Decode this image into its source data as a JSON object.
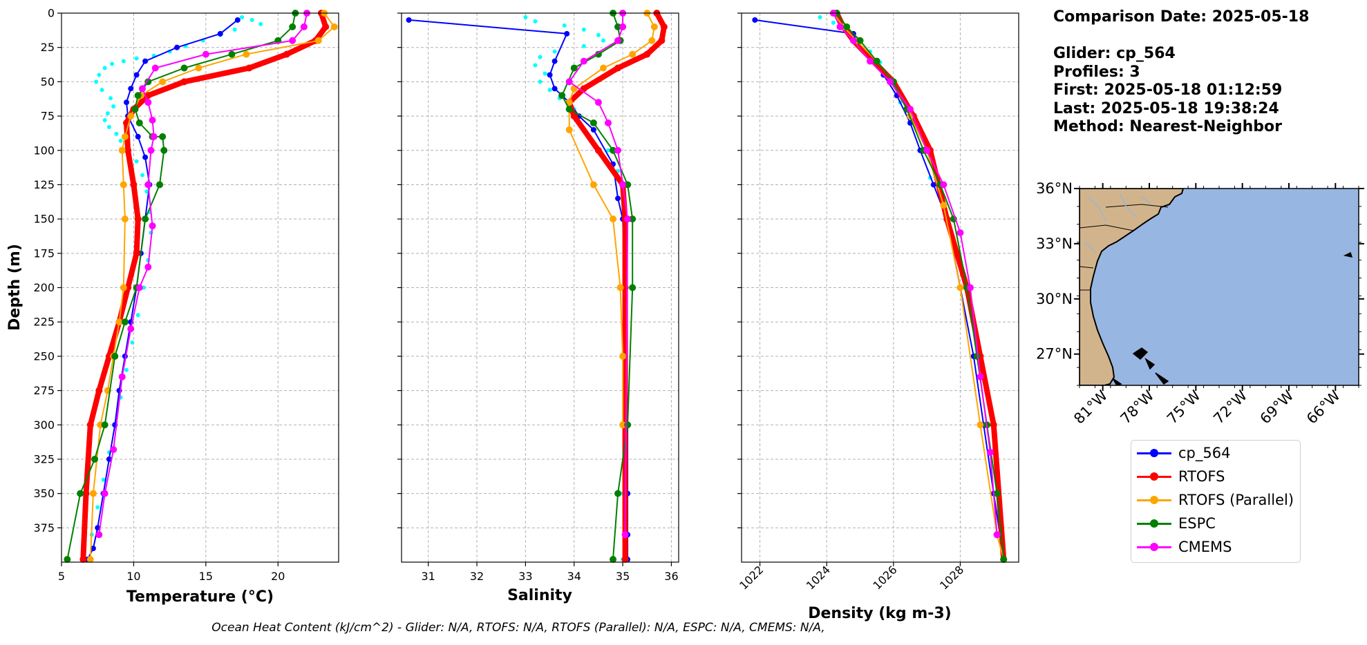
{
  "info": {
    "comparison_date": "Comparison Date: 2025-05-18",
    "glider": "Glider: cp_564",
    "profiles": "Profiles: 3",
    "first": "First: 2025-05-18 01:12:59",
    "last": "Last: 2025-05-18 19:38:24",
    "method": "Method: Nearest-Neighbor"
  },
  "footer": "Ocean Heat Content (kJ/cm^2) - Glider: N/A,  RTOFS: N/A,  RTOFS (Parallel): N/A,  ESPC: N/A,  CMEMS: N/A,",
  "legend": [
    {
      "label": "cp_564",
      "color": "#0000ff"
    },
    {
      "label": "RTOFS",
      "color": "#ff0000"
    },
    {
      "label": "RTOFS (Parallel)",
      "color": "#ffa500"
    },
    {
      "label": "ESPC",
      "color": "#008000"
    },
    {
      "label": "CMEMS",
      "color": "#ff00ff"
    }
  ],
  "colors": {
    "glider_points": "#00ffff",
    "land": "#d2b48c",
    "ocean": "#97b6e1",
    "grid": "#b0b0b0"
  },
  "chart_data": [
    {
      "type": "line",
      "xlabel": "Temperature (°C)",
      "ylabel": "Depth (m)",
      "xlim": [
        5,
        24.2
      ],
      "ylim": [
        400,
        0
      ],
      "xticks": [
        5,
        10,
        15,
        20
      ],
      "yticks": [
        0,
        25,
        50,
        75,
        100,
        125,
        150,
        175,
        200,
        225,
        250,
        275,
        300,
        325,
        350,
        375
      ],
      "grid": true,
      "scatter": {
        "name": "",
        "color": "#00ffff",
        "x": [
          17.5,
          18.2,
          18.8,
          17.0,
          16.0,
          14.8,
          13.6,
          12.5,
          11.4,
          10.2,
          9.3,
          8.5,
          8.0,
          7.6,
          7.4,
          7.8,
          8.4,
          8.6,
          8.2,
          8.0,
          8.3,
          8.8,
          9.1,
          9.6,
          10.2,
          10.6,
          10.9,
          11.1,
          11.2,
          11.0,
          10.7,
          10.3,
          9.9,
          9.5,
          9.1,
          8.7,
          8.3,
          7.9,
          7.5,
          7.1,
          6.8
        ],
        "y": [
          3,
          5,
          8,
          12,
          16,
          20,
          24,
          28,
          31,
          33,
          35,
          37,
          40,
          45,
          50,
          56,
          62,
          68,
          73,
          78,
          83,
          88,
          93,
          100,
          108,
          118,
          130,
          145,
          160,
          180,
          200,
          220,
          240,
          260,
          280,
          300,
          320,
          340,
          360,
          380,
          398
        ]
      },
      "series": [
        {
          "name": "cp_564",
          "color": "#0000ff",
          "lw": 2,
          "ms": 6,
          "x": [
            17.2,
            16.0,
            13.0,
            10.8,
            10.2,
            9.8,
            9.5,
            9.6,
            10.3,
            10.8,
            11.1,
            10.8,
            10.5,
            10.2,
            9.8,
            9.4,
            9.0,
            8.7,
            8.3,
            7.9,
            7.5,
            7.2,
            6.8
          ],
          "y": [
            5,
            15,
            25,
            35,
            45,
            55,
            65,
            75,
            90,
            105,
            125,
            150,
            175,
            200,
            225,
            250,
            275,
            300,
            325,
            350,
            375,
            390,
            398
          ]
        },
        {
          "name": "RTOFS",
          "color": "#ff0000",
          "lw": 8,
          "ms": 8,
          "x": [
            23.0,
            23.3,
            22.6,
            20.6,
            18.0,
            13.5,
            11.0,
            10.0,
            9.5,
            9.6,
            10.0,
            10.3,
            10.2,
            9.6,
            9.0,
            8.3,
            7.6,
            7.0,
            6.7,
            6.5
          ],
          "y": [
            0,
            10,
            20,
            30,
            40,
            50,
            60,
            70,
            80,
            100,
            125,
            150,
            175,
            200,
            225,
            250,
            275,
            300,
            350,
            398
          ]
        },
        {
          "name": "RTOFS (Parallel)",
          "color": "#ffa500",
          "lw": 2,
          "ms": 8,
          "x": [
            23.2,
            23.9,
            22.8,
            17.8,
            14.5,
            12.0,
            10.5,
            9.8,
            9.4,
            9.2,
            9.3,
            9.4,
            9.3,
            9.0,
            8.6,
            8.2,
            7.7,
            7.2,
            7.0
          ],
          "y": [
            0,
            10,
            20,
            30,
            40,
            50,
            60,
            75,
            90,
            100,
            125,
            150,
            200,
            225,
            250,
            275,
            300,
            350,
            398
          ]
        },
        {
          "name": "ESPC",
          "color": "#008000",
          "lw": 2,
          "ms": 8,
          "x": [
            21.2,
            21.0,
            20.0,
            16.8,
            13.5,
            11.0,
            10.3,
            10.1,
            10.4,
            11.3,
            12.0,
            12.1,
            11.8,
            10.8,
            10.2,
            9.4,
            8.7,
            8.0,
            7.3,
            6.3,
            5.4
          ],
          "y": [
            0,
            10,
            20,
            30,
            40,
            50,
            60,
            70,
            80,
            90,
            90,
            100,
            125,
            150,
            200,
            225,
            250,
            300,
            325,
            350,
            398
          ]
        },
        {
          "name": "CMEMS",
          "color": "#ff00ff",
          "lw": 2,
          "ms": 8,
          "x": [
            22.0,
            21.8,
            21.0,
            15.0,
            11.5,
            10.6,
            11.0,
            11.3,
            11.4,
            11.2,
            11.0,
            11.3,
            11.0,
            10.4,
            9.8,
            9.2,
            8.6,
            8.0,
            7.6
          ],
          "y": [
            0,
            10,
            20,
            30,
            40,
            55,
            65,
            78,
            90,
            100,
            125,
            155,
            185,
            200,
            230,
            265,
            318,
            350,
            380
          ]
        }
      ]
    },
    {
      "type": "line",
      "xlabel": "Salinity",
      "ylabel": "",
      "xlim": [
        30.45,
        36.15
      ],
      "ylim": [
        400,
        0
      ],
      "xticks": [
        31,
        32,
        33,
        34,
        35,
        36
      ],
      "grid": true,
      "scatter": {
        "name": "",
        "color": "#00ffff",
        "x": [
          33.0,
          33.2,
          33.8,
          34.2,
          34.5,
          34.6,
          34.2,
          33.6,
          33.3,
          33.2,
          33.4,
          33.3,
          33.5,
          33.7,
          34.0,
          34.4,
          34.7,
          34.9,
          35.0,
          35.0,
          35.0,
          35.0,
          35.0,
          35.0,
          35.0
        ],
        "y": [
          3,
          6,
          9,
          12,
          16,
          20,
          24,
          28,
          32,
          38,
          44,
          50,
          56,
          62,
          70,
          85,
          100,
          115,
          125,
          150,
          200,
          250,
          300,
          350,
          398
        ]
      },
      "series": [
        {
          "name": "cp_564",
          "color": "#0000ff",
          "lw": 2,
          "ms": 6,
          "x": [
            30.6,
            33.85,
            33.6,
            33.5,
            33.6,
            33.9,
            34.1,
            34.4,
            34.8,
            34.9,
            35.0,
            35.05,
            35.05,
            35.1,
            35.1,
            35.1,
            35.1
          ],
          "y": [
            5,
            15,
            35,
            45,
            55,
            65,
            75,
            85,
            110,
            135,
            150,
            200,
            250,
            300,
            350,
            380,
            398
          ]
        },
        {
          "name": "RTOFS",
          "color": "#ff0000",
          "lw": 8,
          "ms": 8,
          "x": [
            35.7,
            35.85,
            35.8,
            35.5,
            34.9,
            34.2,
            33.9,
            34.0,
            34.5,
            35.0,
            35.05,
            35.05,
            35.05,
            35.05
          ],
          "y": [
            0,
            10,
            20,
            30,
            40,
            55,
            65,
            75,
            100,
            125,
            150,
            200,
            300,
            398
          ]
        },
        {
          "name": "RTOFS (Parallel)",
          "color": "#ffa500",
          "lw": 2,
          "ms": 8,
          "x": [
            35.5,
            35.65,
            35.6,
            35.2,
            34.6,
            34.0,
            33.9,
            33.9,
            34.4,
            34.8,
            34.95,
            35.0,
            35.0
          ],
          "y": [
            0,
            10,
            20,
            30,
            40,
            55,
            65,
            85,
            125,
            150,
            200,
            250,
            300
          ]
        },
        {
          "name": "ESPC",
          "color": "#008000",
          "lw": 2,
          "ms": 8,
          "x": [
            34.8,
            34.9,
            34.95,
            34.5,
            34.0,
            33.75,
            33.9,
            34.4,
            34.8,
            35.1,
            35.2,
            35.2,
            35.1,
            34.9,
            34.8
          ],
          "y": [
            0,
            10,
            20,
            30,
            40,
            60,
            70,
            80,
            100,
            125,
            150,
            200,
            300,
            350,
            398
          ]
        },
        {
          "name": "CMEMS",
          "color": "#ff00ff",
          "lw": 2,
          "ms": 8,
          "x": [
            35.0,
            35.0,
            34.9,
            34.2,
            33.9,
            34.5,
            34.7,
            34.9,
            35.0,
            35.1,
            35.05
          ],
          "y": [
            0,
            10,
            20,
            35,
            50,
            65,
            80,
            100,
            125,
            150,
            380
          ]
        }
      ]
    },
    {
      "type": "line",
      "xlabel": "Density (kg m-3)",
      "ylabel": "",
      "xlim": [
        1021.45,
        1029.75
      ],
      "ylim": [
        400,
        0
      ],
      "xticks": [
        1022,
        1024,
        1026,
        1028
      ],
      "grid": true,
      "scatter": {
        "name": "",
        "color": "#00ffff",
        "x": [
          1023.8,
          1024.2,
          1024.6,
          1025.0,
          1025.3,
          1025.6,
          1025.9,
          1026.2,
          1026.5,
          1026.8,
          1027.1
        ],
        "y": [
          3,
          7,
          12,
          20,
          28,
          36,
          50,
          65,
          80,
          100,
          120
        ]
      },
      "series": [
        {
          "name": "cp_564",
          "color": "#0000ff",
          "lw": 2,
          "ms": 6,
          "x": [
            1021.85,
            1024.8,
            1025.0,
            1025.4,
            1025.7,
            1026.1,
            1026.5,
            1026.8,
            1027.2,
            1027.6,
            1028.0,
            1028.4,
            1028.7,
            1029.0,
            1029.3
          ],
          "y": [
            5,
            15,
            25,
            35,
            45,
            60,
            80,
            100,
            125,
            150,
            200,
            250,
            300,
            350,
            398
          ]
        },
        {
          "name": "RTOFS",
          "color": "#ff0000",
          "lw": 8,
          "ms": 8,
          "x": [
            1024.3,
            1024.5,
            1024.8,
            1025.4,
            1026.0,
            1026.6,
            1027.1,
            1027.6,
            1028.2,
            1028.6,
            1029.0,
            1029.3
          ],
          "y": [
            0,
            10,
            20,
            35,
            50,
            75,
            100,
            150,
            200,
            250,
            300,
            398
          ]
        },
        {
          "name": "RTOFS (Parallel)",
          "color": "#ffa500",
          "lw": 2,
          "ms": 8,
          "x": [
            1024.2,
            1024.5,
            1024.9,
            1025.5,
            1026.0,
            1026.5,
            1027.0,
            1027.5,
            1028.0,
            1028.6,
            1029.1,
            1029.3
          ],
          "y": [
            0,
            10,
            20,
            35,
            50,
            75,
            100,
            140,
            200,
            300,
            380,
            398
          ]
        },
        {
          "name": "ESPC",
          "color": "#008000",
          "lw": 2,
          "ms": 8,
          "x": [
            1024.3,
            1024.6,
            1025.0,
            1025.5,
            1026.0,
            1026.4,
            1026.9,
            1027.4,
            1027.8,
            1028.2,
            1028.5,
            1028.8,
            1029.1,
            1029.3
          ],
          "y": [
            0,
            10,
            20,
            35,
            50,
            70,
            100,
            125,
            150,
            200,
            250,
            300,
            350,
            398
          ]
        },
        {
          "name": "CMEMS",
          "color": "#ff00ff",
          "lw": 2,
          "ms": 8,
          "x": [
            1024.2,
            1024.4,
            1024.8,
            1025.3,
            1025.9,
            1026.5,
            1027.0,
            1027.5,
            1028.0,
            1028.3,
            1028.6,
            1028.9,
            1029.1
          ],
          "y": [
            0,
            10,
            20,
            35,
            50,
            70,
            100,
            125,
            160,
            200,
            265,
            320,
            380
          ]
        }
      ]
    },
    {
      "type": "map",
      "lat_ticks": [
        "36°N",
        "33°N",
        "30°N",
        "27°N"
      ],
      "lon_ticks": [
        "81°W",
        "78°W",
        "75°W",
        "72°W",
        "69°W",
        "66°W"
      ],
      "lat_values": [
        36,
        33,
        30,
        27
      ],
      "lon_values": [
        -81,
        -78,
        -75,
        -72,
        -69,
        -66
      ],
      "extent": [
        -82.5,
        -64.5,
        25.3,
        36.0
      ]
    }
  ]
}
